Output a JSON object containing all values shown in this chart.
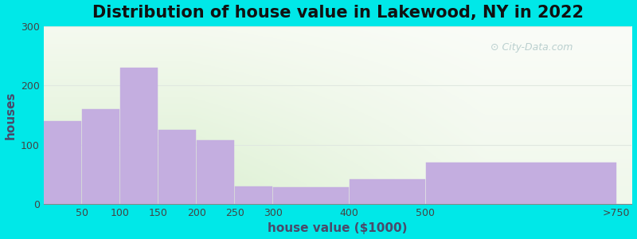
{
  "title": "Distribution of house value in Lakewood, NY in 2022",
  "xlabel": "house value ($1000)",
  "ylabel": "houses",
  "bar_left_edges": [
    0,
    50,
    100,
    150,
    200,
    250,
    300,
    400,
    500
  ],
  "bar_widths": [
    50,
    50,
    50,
    50,
    50,
    50,
    100,
    100,
    250
  ],
  "values": [
    140,
    160,
    230,
    125,
    108,
    30,
    28,
    42,
    70
  ],
  "xtick_positions": [
    50,
    100,
    150,
    200,
    250,
    300,
    400,
    500,
    750
  ],
  "xtick_labels": [
    "50",
    "100",
    "150",
    "200",
    "250",
    "300",
    "400",
    "500",
    ">750"
  ],
  "bar_color": "#c4aee0",
  "bar_edge_color": "#c4aee0",
  "ylim": [
    0,
    300
  ],
  "xlim": [
    0,
    770
  ],
  "yticks": [
    0,
    100,
    200,
    300
  ],
  "bg_outer": "#00e8e8",
  "plot_bg_color": "#eaf5e4",
  "title_fontsize": 15,
  "axis_label_fontsize": 11,
  "watermark_text": " City-Data.com",
  "watermark_color": "#b0c8c8",
  "grid_color": "#e0e8e0",
  "tick_fontsize": 9
}
